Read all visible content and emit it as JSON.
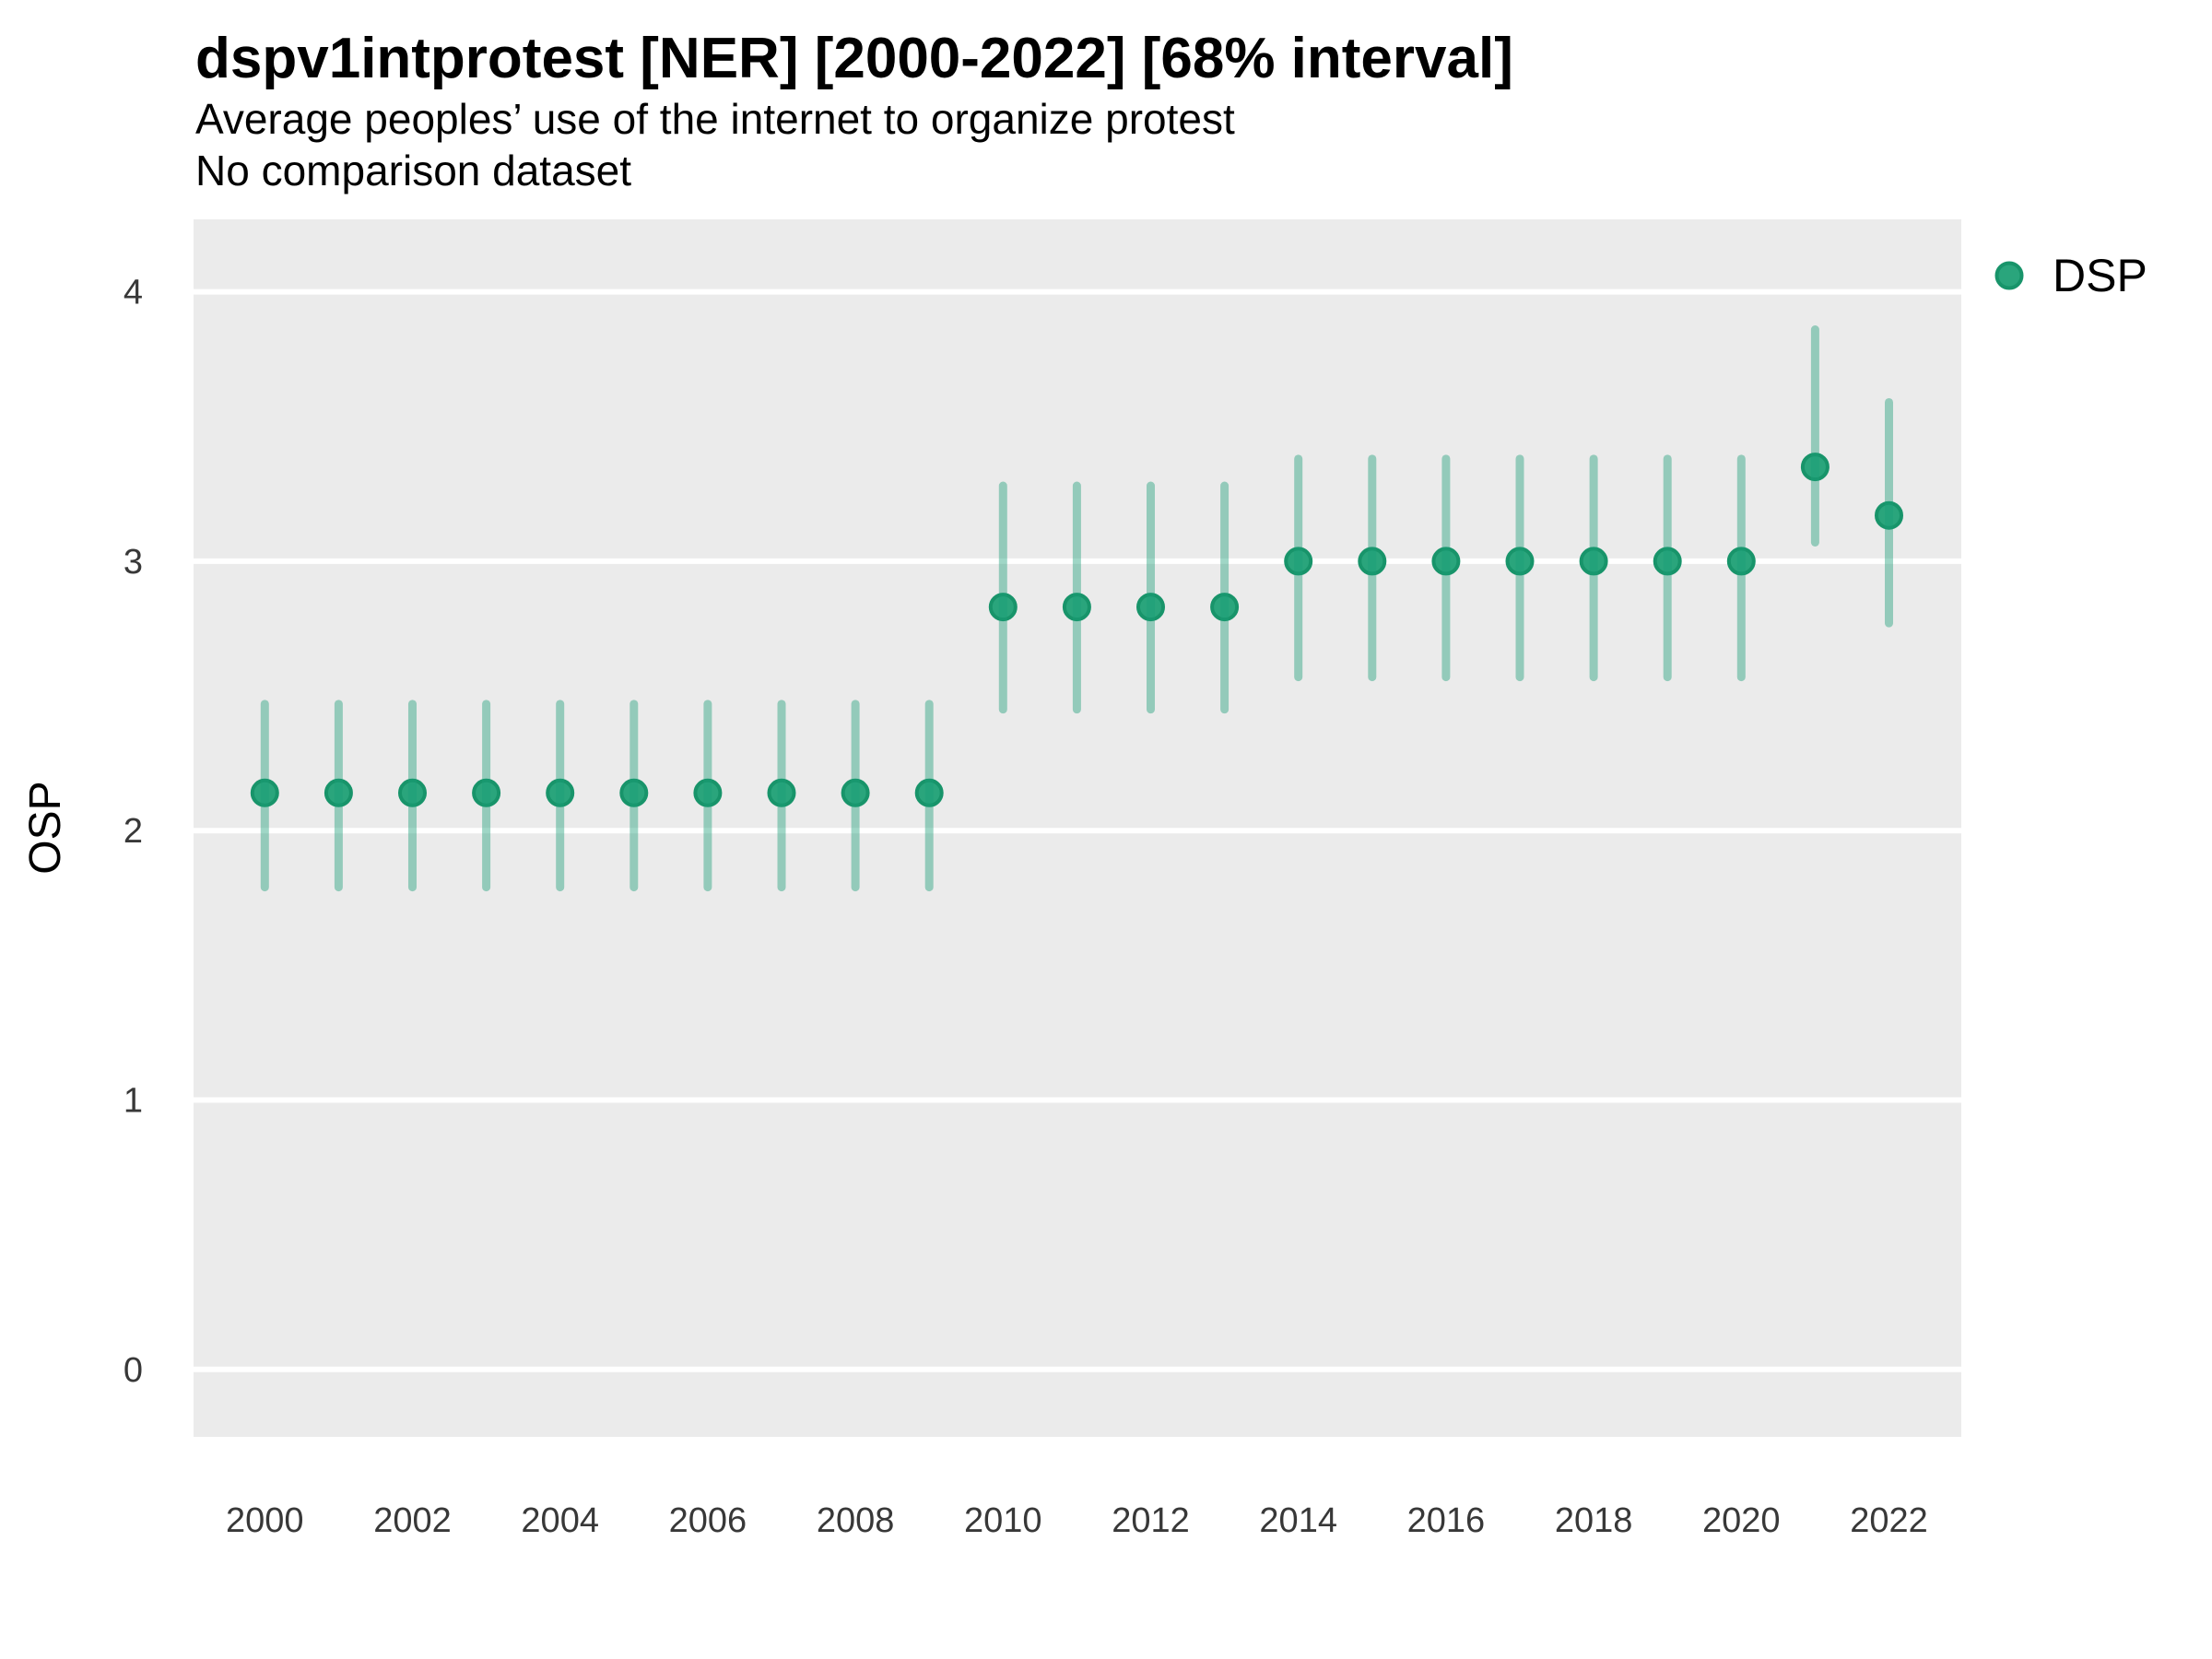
{
  "header": {
    "title": "dspv1intprotest [NER] [2000-2022] [68% interval]",
    "subtitle": "Average peoples’ use of the internet to organize protest",
    "note": "No comparison dataset"
  },
  "y_axis": {
    "title": "OSP"
  },
  "legend": {
    "label": "DSP"
  },
  "colors": {
    "panel_bg": "#EBEBEB",
    "gridline": "#FFFFFF",
    "point_fill": "#2AA57C",
    "point_stroke": "#18946A",
    "interval_rgba": "rgba(27,158,119,0.42)",
    "tick_text": "#383838"
  },
  "chart_data": {
    "type": "scatter",
    "title": "dspv1intprotest [NER] [2000-2022] [68% interval]",
    "subtitle": "Average peoples’ use of the internet to organize protest",
    "note": "No comparison dataset",
    "xlabel": "",
    "ylabel": "OSP",
    "interval": "68%",
    "legend_position": "right",
    "grid": "horizontal-major-white-on-gray",
    "xlim": [
      1999.035,
      2022.98
    ],
    "ylim": [
      -0.2504,
      4.2689
    ],
    "x_ticks": [
      2000,
      2002,
      2004,
      2006,
      2008,
      2010,
      2012,
      2014,
      2016,
      2018,
      2020,
      2022
    ],
    "y_ticks": [
      0,
      1,
      2,
      3,
      4
    ],
    "series": [
      {
        "name": "DSP",
        "points": [
          {
            "year": 2000,
            "value": 2.14,
            "lo": 1.79,
            "hi": 2.47
          },
          {
            "year": 2001,
            "value": 2.14,
            "lo": 1.79,
            "hi": 2.47
          },
          {
            "year": 2002,
            "value": 2.14,
            "lo": 1.79,
            "hi": 2.47
          },
          {
            "year": 2003,
            "value": 2.14,
            "lo": 1.79,
            "hi": 2.47
          },
          {
            "year": 2004,
            "value": 2.14,
            "lo": 1.79,
            "hi": 2.47
          },
          {
            "year": 2005,
            "value": 2.14,
            "lo": 1.79,
            "hi": 2.47
          },
          {
            "year": 2006,
            "value": 2.14,
            "lo": 1.79,
            "hi": 2.47
          },
          {
            "year": 2007,
            "value": 2.14,
            "lo": 1.79,
            "hi": 2.47
          },
          {
            "year": 2008,
            "value": 2.14,
            "lo": 1.79,
            "hi": 2.47
          },
          {
            "year": 2009,
            "value": 2.14,
            "lo": 1.79,
            "hi": 2.47
          },
          {
            "year": 2010,
            "value": 2.83,
            "lo": 2.45,
            "hi": 3.28
          },
          {
            "year": 2011,
            "value": 2.83,
            "lo": 2.45,
            "hi": 3.28
          },
          {
            "year": 2012,
            "value": 2.83,
            "lo": 2.45,
            "hi": 3.28
          },
          {
            "year": 2013,
            "value": 2.83,
            "lo": 2.45,
            "hi": 3.28
          },
          {
            "year": 2014,
            "value": 3.0,
            "lo": 2.57,
            "hi": 3.38
          },
          {
            "year": 2015,
            "value": 3.0,
            "lo": 2.57,
            "hi": 3.38
          },
          {
            "year": 2016,
            "value": 3.0,
            "lo": 2.57,
            "hi": 3.38
          },
          {
            "year": 2017,
            "value": 3.0,
            "lo": 2.57,
            "hi": 3.38
          },
          {
            "year": 2018,
            "value": 3.0,
            "lo": 2.57,
            "hi": 3.38
          },
          {
            "year": 2019,
            "value": 3.0,
            "lo": 2.57,
            "hi": 3.38
          },
          {
            "year": 2020,
            "value": 3.0,
            "lo": 2.57,
            "hi": 3.38
          },
          {
            "year": 2021,
            "value": 3.35,
            "lo": 3.07,
            "hi": 3.86
          },
          {
            "year": 2022,
            "value": 3.17,
            "lo": 2.77,
            "hi": 3.59
          }
        ]
      }
    ]
  }
}
